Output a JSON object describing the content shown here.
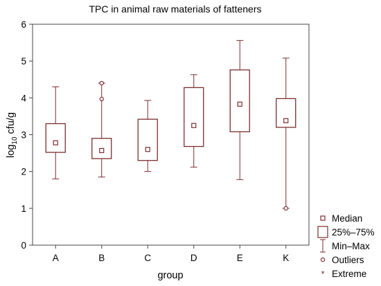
{
  "chart_data": {
    "type": "boxplot",
    "title": "TPC in animal raw materials of fatteners",
    "xlabel": "group",
    "ylabel_prefix": "log",
    "ylabel_sub": "10",
    "ylabel_suffix": " cfu/g",
    "ylim": [
      0,
      6
    ],
    "yticks": [
      "0",
      "1",
      "2",
      "3",
      "4",
      "5",
      "6"
    ],
    "grid": false,
    "legend_position": "bottom-right",
    "categories": [
      "A",
      "B",
      "C",
      "D",
      "E",
      "K"
    ],
    "boxes": [
      {
        "group": "A",
        "min": 1.8,
        "q1": 2.52,
        "median": 2.78,
        "q3": 3.3,
        "max": 4.3,
        "outliers": []
      },
      {
        "group": "B",
        "min": 1.85,
        "q1": 2.35,
        "median": 2.57,
        "q3": 2.9,
        "max": 4.4,
        "outliers": [
          3.97,
          4.4
        ]
      },
      {
        "group": "C",
        "min": 2.0,
        "q1": 2.3,
        "median": 2.6,
        "q3": 3.42,
        "max": 3.93,
        "outliers": []
      },
      {
        "group": "D",
        "min": 2.12,
        "q1": 2.68,
        "median": 3.25,
        "q3": 4.28,
        "max": 4.63,
        "outliers": []
      },
      {
        "group": "E",
        "min": 1.78,
        "q1": 3.08,
        "median": 3.83,
        "q3": 4.76,
        "max": 5.56,
        "outliers": []
      },
      {
        "group": "K",
        "min": 1.0,
        "q1": 3.2,
        "median": 3.38,
        "q3": 3.98,
        "max": 5.08,
        "outliers": [
          1.0
        ]
      }
    ],
    "legend": [
      {
        "key": "median",
        "label": "Median"
      },
      {
        "key": "box",
        "label": "25%–75%"
      },
      {
        "key": "range",
        "label": "Min–Max"
      },
      {
        "key": "outlier",
        "label": "Outliers"
      },
      {
        "key": "extreme",
        "label": "Extreme"
      }
    ],
    "colors": {
      "mark": "#7b2d2d",
      "axis": "#444444"
    }
  }
}
